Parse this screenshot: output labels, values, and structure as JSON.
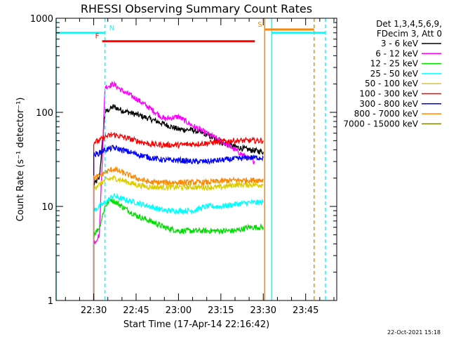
{
  "chart_data": {
    "type": "line",
    "title": "RHESSI Observing Summary Count Rates",
    "xlabel": "Start Time (17-Apr-14 22:16:42)",
    "ylabel": "Count Rate (s⁻¹ detector⁻¹)",
    "y_scale": "log",
    "ylim": [
      1,
      1000
    ],
    "y_ticks": [
      {
        "v": 1,
        "label": "1"
      },
      {
        "v": 10,
        "label": "10"
      },
      {
        "v": 100,
        "label": "100"
      },
      {
        "v": 1000,
        "label": "1000"
      }
    ],
    "x_ticks": [
      {
        "v": "22:30",
        "label": "22:30"
      },
      {
        "v": "22:45",
        "label": "22:45"
      },
      {
        "v": "23:00",
        "label": "23:00"
      },
      {
        "v": "23:15",
        "label": "23:15"
      },
      {
        "v": "23:30",
        "label": "23:30"
      },
      {
        "v": "23:45",
        "label": "23:45"
      }
    ],
    "xlim": [
      "22:16:42",
      "23:56:00"
    ],
    "legend_header": [
      "Det 1,3,4,5,6,9,",
      "FDecim 3, Att 0"
    ],
    "legend_position": "top-right outside plot",
    "series": [
      {
        "name": "3 - 6 keV",
        "color": "#000000",
        "x": [
          "22:30",
          "22:32",
          "22:34",
          "22:37",
          "22:40",
          "22:45",
          "22:50",
          "22:55",
          "23:00",
          "23:05",
          "23:10",
          "23:15",
          "23:20",
          "23:25",
          "23:30"
        ],
        "y": [
          17,
          20,
          100,
          115,
          105,
          95,
          85,
          75,
          66,
          65,
          58,
          48,
          43,
          40,
          38
        ]
      },
      {
        "name": "6 - 12 keV",
        "color": "#ff00ff",
        "x": [
          "22:30",
          "22:32",
          "22:34",
          "22:37",
          "22:40",
          "22:45",
          "22:50",
          "22:55",
          "23:00",
          "23:05",
          "23:10",
          "23:15",
          "23:20",
          "23:25",
          "23:27"
        ],
        "y": [
          4,
          5,
          185,
          200,
          170,
          140,
          110,
          85,
          90,
          72,
          60,
          50,
          40,
          32,
          30
        ]
      },
      {
        "name": "12 - 25 keV",
        "color": "#00dd00",
        "x": [
          "22:30",
          "22:32",
          "22:34",
          "22:36",
          "22:40",
          "22:45",
          "22:50",
          "22:55",
          "23:00",
          "23:05",
          "23:10",
          "23:15",
          "23:20",
          "23:25",
          "23:30"
        ],
        "y": [
          5,
          6,
          10,
          12,
          10,
          8,
          7,
          6,
          5.5,
          5.5,
          5.5,
          5.5,
          5.5,
          6,
          6
        ]
      },
      {
        "name": "25 - 50 keV",
        "color": "#00ffff",
        "x": [
          "22:30",
          "22:32",
          "22:34",
          "22:37",
          "22:40",
          "22:45",
          "22:50",
          "22:55",
          "23:00",
          "23:05",
          "23:10",
          "23:15",
          "23:20",
          "23:25",
          "23:30"
        ],
        "y": [
          9,
          10,
          11,
          13,
          12,
          11,
          10,
          9,
          9,
          9,
          10,
          10,
          10.5,
          11,
          11
        ]
      },
      {
        "name": "50 - 100 keV",
        "color": "#ddcc00",
        "x": [
          "22:30",
          "22:32",
          "22:34",
          "22:37",
          "22:40",
          "22:45",
          "22:50",
          "22:55",
          "23:00",
          "23:05",
          "23:10",
          "23:15",
          "23:20",
          "23:25",
          "23:30"
        ],
        "y": [
          16,
          17,
          19,
          20,
          19,
          17,
          16,
          16,
          16,
          16,
          16,
          16,
          17,
          17,
          17
        ]
      },
      {
        "name": "100 - 300 keV",
        "color": "#ff0000",
        "x": [
          "22:30",
          "22:32",
          "22:34",
          "22:37",
          "22:40",
          "22:45",
          "22:50",
          "22:55",
          "23:00",
          "23:05",
          "23:10",
          "23:15",
          "23:20",
          "23:25",
          "23:30"
        ],
        "y": [
          48,
          50,
          55,
          58,
          55,
          50,
          46,
          45,
          45,
          46,
          47,
          49,
          50,
          50,
          50
        ]
      },
      {
        "name": "300 - 800 keV",
        "color": "#0000ff",
        "x": [
          "22:30",
          "22:32",
          "22:34",
          "22:37",
          "22:40",
          "22:45",
          "22:50",
          "22:55",
          "23:00",
          "23:05",
          "23:10",
          "23:15",
          "23:20",
          "23:25",
          "23:30"
        ],
        "y": [
          35,
          37,
          40,
          42,
          40,
          36,
          33,
          31,
          31,
          30,
          30,
          31,
          32,
          33,
          33
        ]
      },
      {
        "name": "800 - 7000 keV",
        "color": "#ff8800",
        "x": [
          "22:30",
          "22:32",
          "22:34",
          "22:37",
          "22:40",
          "22:45",
          "22:50",
          "22:55",
          "23:00",
          "23:05",
          "23:10",
          "23:15",
          "23:20",
          "23:25",
          "23:30"
        ],
        "y": [
          20,
          21,
          23,
          25,
          23,
          20,
          18,
          18,
          18,
          18,
          18,
          18.5,
          19,
          19,
          19
        ]
      },
      {
        "name": "7000 - 15000 keV",
        "color": "#808000",
        "x": [],
        "y": []
      }
    ],
    "flags": [
      {
        "label": "N",
        "color": "#00ffff",
        "start": "22:16:42",
        "end": "22:34:00",
        "level": 700
      },
      {
        "label": "F",
        "color": "#ff0000",
        "start": "22:33:00",
        "end": "23:27:00",
        "level": 570
      },
      {
        "label": "S",
        "color": "#ff8800",
        "start": "23:30:30",
        "end": "23:48:00",
        "level": 760
      },
      {
        "label": "",
        "color": "#00ffff",
        "start": "23:33:00",
        "end": "23:52:00",
        "level": 700
      }
    ],
    "vertical_lines": [
      {
        "t": "22:16:42",
        "color": "#00ffff",
        "style": "solid"
      },
      {
        "t": "22:34:00",
        "color": "#00ffff",
        "style": "dashed"
      },
      {
        "t": "23:30:30",
        "color": "#ff8800",
        "style": "solid"
      },
      {
        "t": "23:33:00",
        "color": "#00ffff",
        "style": "solid"
      },
      {
        "t": "23:48:00",
        "color": "#ff8800",
        "style": "dashed"
      },
      {
        "t": "23:52:00",
        "color": "#00ffff",
        "style": "dashed"
      }
    ]
  },
  "footer": {
    "generated": "22-Oct-2021 15:18"
  }
}
